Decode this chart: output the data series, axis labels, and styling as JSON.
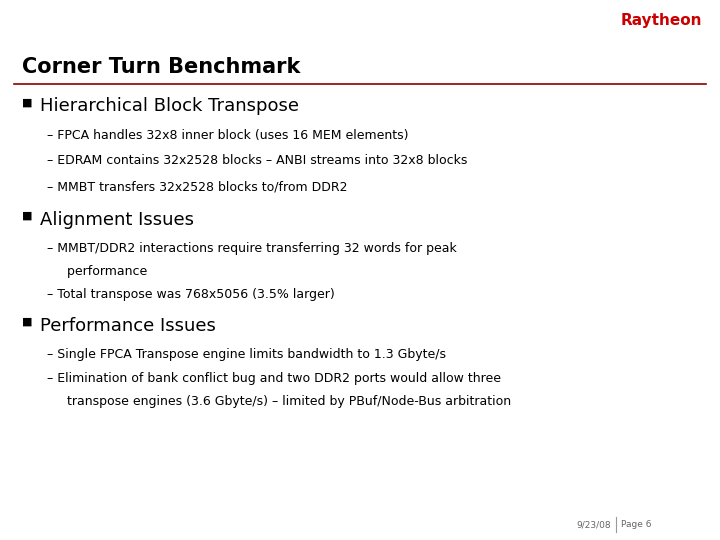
{
  "title": "Corner Turn Benchmark",
  "background_color": "#ffffff",
  "title_color": "#000000",
  "raytheon_color": "#cc0000",
  "raytheon_text": "Raytheon",
  "separator_color": "#8b0000",
  "bullet_color": "#000000",
  "section1_header": "Hierarchical Block Transpose",
  "section1_bullets": [
    "– FPCA handles 32x8 inner block (uses 16 MEM elements)",
    "– EDRAM contains 32x2528 blocks – ANBI streams into 32x8 blocks",
    "– MMBT transfers 32x2528 blocks to/from DDR2"
  ],
  "section2_header": "Alignment Issues",
  "section2_bullets": [
    "– MMBT/DDR2 interactions require transferring 32 words for peak",
    "     performance",
    "– Total transpose was 768x5056 (3.5% larger)"
  ],
  "section3_header": "Performance Issues",
  "section3_bullets": [
    "– Single FPCA Transpose engine limits bandwidth to 1.3 Gbyte/s",
    "– Elimination of bank conflict bug and two DDR2 ports would allow three",
    "     transpose engines (3.6 Gbyte/s) – limited by PBuf/Node-Bus arbitration"
  ],
  "footer_date": "9/23/08",
  "footer_page": "Page 6"
}
